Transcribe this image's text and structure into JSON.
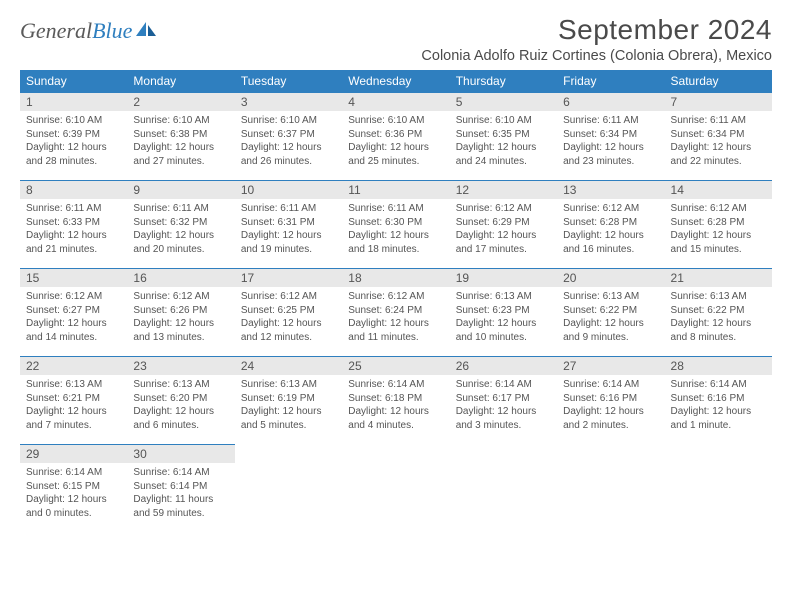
{
  "logo": {
    "text1": "General",
    "text2": "Blue"
  },
  "title": "September 2024",
  "location": "Colonia Adolfo Ruiz Cortines (Colonia Obrera), Mexico",
  "colors": {
    "header_bg": "#2f7fbf",
    "header_text": "#ffffff",
    "daynum_bg": "#e8e8e8",
    "daynum_border": "#2f7fbf",
    "body_text": "#555555"
  },
  "weekdays": [
    "Sunday",
    "Monday",
    "Tuesday",
    "Wednesday",
    "Thursday",
    "Friday",
    "Saturday"
  ],
  "days": [
    {
      "n": "1",
      "sr": "6:10 AM",
      "ss": "6:39 PM",
      "d1": "Daylight: 12 hours",
      "d2": "and 28 minutes."
    },
    {
      "n": "2",
      "sr": "6:10 AM",
      "ss": "6:38 PM",
      "d1": "Daylight: 12 hours",
      "d2": "and 27 minutes."
    },
    {
      "n": "3",
      "sr": "6:10 AM",
      "ss": "6:37 PM",
      "d1": "Daylight: 12 hours",
      "d2": "and 26 minutes."
    },
    {
      "n": "4",
      "sr": "6:10 AM",
      "ss": "6:36 PM",
      "d1": "Daylight: 12 hours",
      "d2": "and 25 minutes."
    },
    {
      "n": "5",
      "sr": "6:10 AM",
      "ss": "6:35 PM",
      "d1": "Daylight: 12 hours",
      "d2": "and 24 minutes."
    },
    {
      "n": "6",
      "sr": "6:11 AM",
      "ss": "6:34 PM",
      "d1": "Daylight: 12 hours",
      "d2": "and 23 minutes."
    },
    {
      "n": "7",
      "sr": "6:11 AM",
      "ss": "6:34 PM",
      "d1": "Daylight: 12 hours",
      "d2": "and 22 minutes."
    },
    {
      "n": "8",
      "sr": "6:11 AM",
      "ss": "6:33 PM",
      "d1": "Daylight: 12 hours",
      "d2": "and 21 minutes."
    },
    {
      "n": "9",
      "sr": "6:11 AM",
      "ss": "6:32 PM",
      "d1": "Daylight: 12 hours",
      "d2": "and 20 minutes."
    },
    {
      "n": "10",
      "sr": "6:11 AM",
      "ss": "6:31 PM",
      "d1": "Daylight: 12 hours",
      "d2": "and 19 minutes."
    },
    {
      "n": "11",
      "sr": "6:11 AM",
      "ss": "6:30 PM",
      "d1": "Daylight: 12 hours",
      "d2": "and 18 minutes."
    },
    {
      "n": "12",
      "sr": "6:12 AM",
      "ss": "6:29 PM",
      "d1": "Daylight: 12 hours",
      "d2": "and 17 minutes."
    },
    {
      "n": "13",
      "sr": "6:12 AM",
      "ss": "6:28 PM",
      "d1": "Daylight: 12 hours",
      "d2": "and 16 minutes."
    },
    {
      "n": "14",
      "sr": "6:12 AM",
      "ss": "6:28 PM",
      "d1": "Daylight: 12 hours",
      "d2": "and 15 minutes."
    },
    {
      "n": "15",
      "sr": "6:12 AM",
      "ss": "6:27 PM",
      "d1": "Daylight: 12 hours",
      "d2": "and 14 minutes."
    },
    {
      "n": "16",
      "sr": "6:12 AM",
      "ss": "6:26 PM",
      "d1": "Daylight: 12 hours",
      "d2": "and 13 minutes."
    },
    {
      "n": "17",
      "sr": "6:12 AM",
      "ss": "6:25 PM",
      "d1": "Daylight: 12 hours",
      "d2": "and 12 minutes."
    },
    {
      "n": "18",
      "sr": "6:12 AM",
      "ss": "6:24 PM",
      "d1": "Daylight: 12 hours",
      "d2": "and 11 minutes."
    },
    {
      "n": "19",
      "sr": "6:13 AM",
      "ss": "6:23 PM",
      "d1": "Daylight: 12 hours",
      "d2": "and 10 minutes."
    },
    {
      "n": "20",
      "sr": "6:13 AM",
      "ss": "6:22 PM",
      "d1": "Daylight: 12 hours",
      "d2": "and 9 minutes."
    },
    {
      "n": "21",
      "sr": "6:13 AM",
      "ss": "6:22 PM",
      "d1": "Daylight: 12 hours",
      "d2": "and 8 minutes."
    },
    {
      "n": "22",
      "sr": "6:13 AM",
      "ss": "6:21 PM",
      "d1": "Daylight: 12 hours",
      "d2": "and 7 minutes."
    },
    {
      "n": "23",
      "sr": "6:13 AM",
      "ss": "6:20 PM",
      "d1": "Daylight: 12 hours",
      "d2": "and 6 minutes."
    },
    {
      "n": "24",
      "sr": "6:13 AM",
      "ss": "6:19 PM",
      "d1": "Daylight: 12 hours",
      "d2": "and 5 minutes."
    },
    {
      "n": "25",
      "sr": "6:14 AM",
      "ss": "6:18 PM",
      "d1": "Daylight: 12 hours",
      "d2": "and 4 minutes."
    },
    {
      "n": "26",
      "sr": "6:14 AM",
      "ss": "6:17 PM",
      "d1": "Daylight: 12 hours",
      "d2": "and 3 minutes."
    },
    {
      "n": "27",
      "sr": "6:14 AM",
      "ss": "6:16 PM",
      "d1": "Daylight: 12 hours",
      "d2": "and 2 minutes."
    },
    {
      "n": "28",
      "sr": "6:14 AM",
      "ss": "6:16 PM",
      "d1": "Daylight: 12 hours",
      "d2": "and 1 minute."
    },
    {
      "n": "29",
      "sr": "6:14 AM",
      "ss": "6:15 PM",
      "d1": "Daylight: 12 hours",
      "d2": "and 0 minutes."
    },
    {
      "n": "30",
      "sr": "6:14 AM",
      "ss": "6:14 PM",
      "d1": "Daylight: 11 hours",
      "d2": "and 59 minutes."
    }
  ]
}
